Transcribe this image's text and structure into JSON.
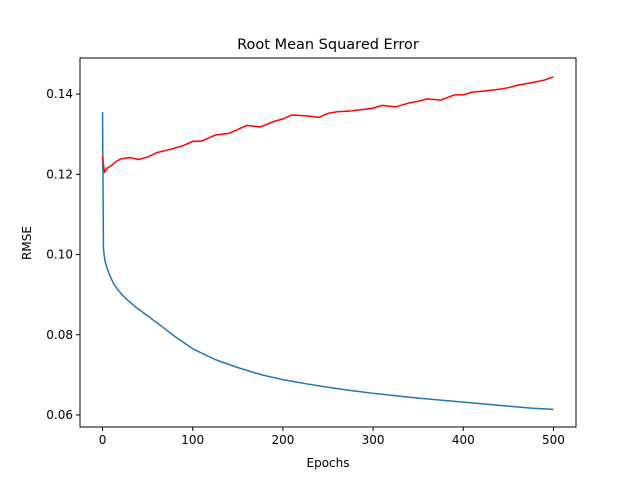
{
  "chart_data": {
    "type": "line",
    "title": "Root Mean Squared Error",
    "xlabel": "Epochs",
    "ylabel": "RMSE",
    "xlim": [
      -25,
      525
    ],
    "ylim": [
      0.057,
      0.149
    ],
    "xticks": [
      0,
      100,
      200,
      300,
      400,
      500
    ],
    "xtick_labels": [
      "0",
      "100",
      "200",
      "300",
      "400",
      "500"
    ],
    "yticks": [
      0.06,
      0.08,
      0.1,
      0.12,
      0.14
    ],
    "ytick_labels": [
      "0.06",
      "0.08",
      "0.10",
      "0.12",
      "0.14"
    ],
    "grid": false,
    "series": [
      {
        "color": "#1f77b4",
        "x": [
          0,
          1,
          2,
          3,
          5,
          8,
          12,
          17,
          25,
          35,
          50,
          65,
          80,
          100,
          125,
          150,
          175,
          200,
          225,
          250,
          275,
          300,
          325,
          350,
          375,
          400,
          425,
          450,
          475,
          500
        ],
        "y": [
          0.1355,
          0.1015,
          0.0995,
          0.0982,
          0.0966,
          0.0948,
          0.0929,
          0.0912,
          0.0892,
          0.0872,
          0.0847,
          0.0822,
          0.0796,
          0.0765,
          0.0738,
          0.0718,
          0.0701,
          0.0688,
          0.0678,
          0.0669,
          0.0661,
          0.0654,
          0.0648,
          0.0642,
          0.0637,
          0.0632,
          0.0627,
          0.0622,
          0.0617,
          0.0614
        ]
      },
      {
        "color": "#ff0000",
        "x": [
          0,
          2,
          5,
          10,
          15,
          20,
          30,
          40,
          50,
          60,
          75,
          90,
          100,
          110,
          125,
          140,
          150,
          160,
          175,
          190,
          200,
          210,
          225,
          240,
          250,
          260,
          275,
          290,
          300,
          310,
          325,
          340,
          350,
          360,
          375,
          390,
          400,
          410,
          425,
          440,
          450,
          460,
          475,
          490,
          500
        ],
        "y": [
          0.1245,
          0.1205,
          0.1215,
          0.1222,
          0.1232,
          0.1238,
          0.1242,
          0.1237,
          0.1243,
          0.1254,
          0.1262,
          0.1272,
          0.1282,
          0.1283,
          0.1298,
          0.1302,
          0.1312,
          0.1322,
          0.1318,
          0.1332,
          0.1338,
          0.1348,
          0.1346,
          0.1342,
          0.1352,
          0.1356,
          0.1358,
          0.1362,
          0.1365,
          0.1372,
          0.1368,
          0.1378,
          0.1382,
          0.1388,
          0.1385,
          0.1398,
          0.1398,
          0.1405,
          0.1408,
          0.1412,
          0.1416,
          0.1422,
          0.1428,
          0.1435,
          0.1443
        ]
      }
    ]
  }
}
